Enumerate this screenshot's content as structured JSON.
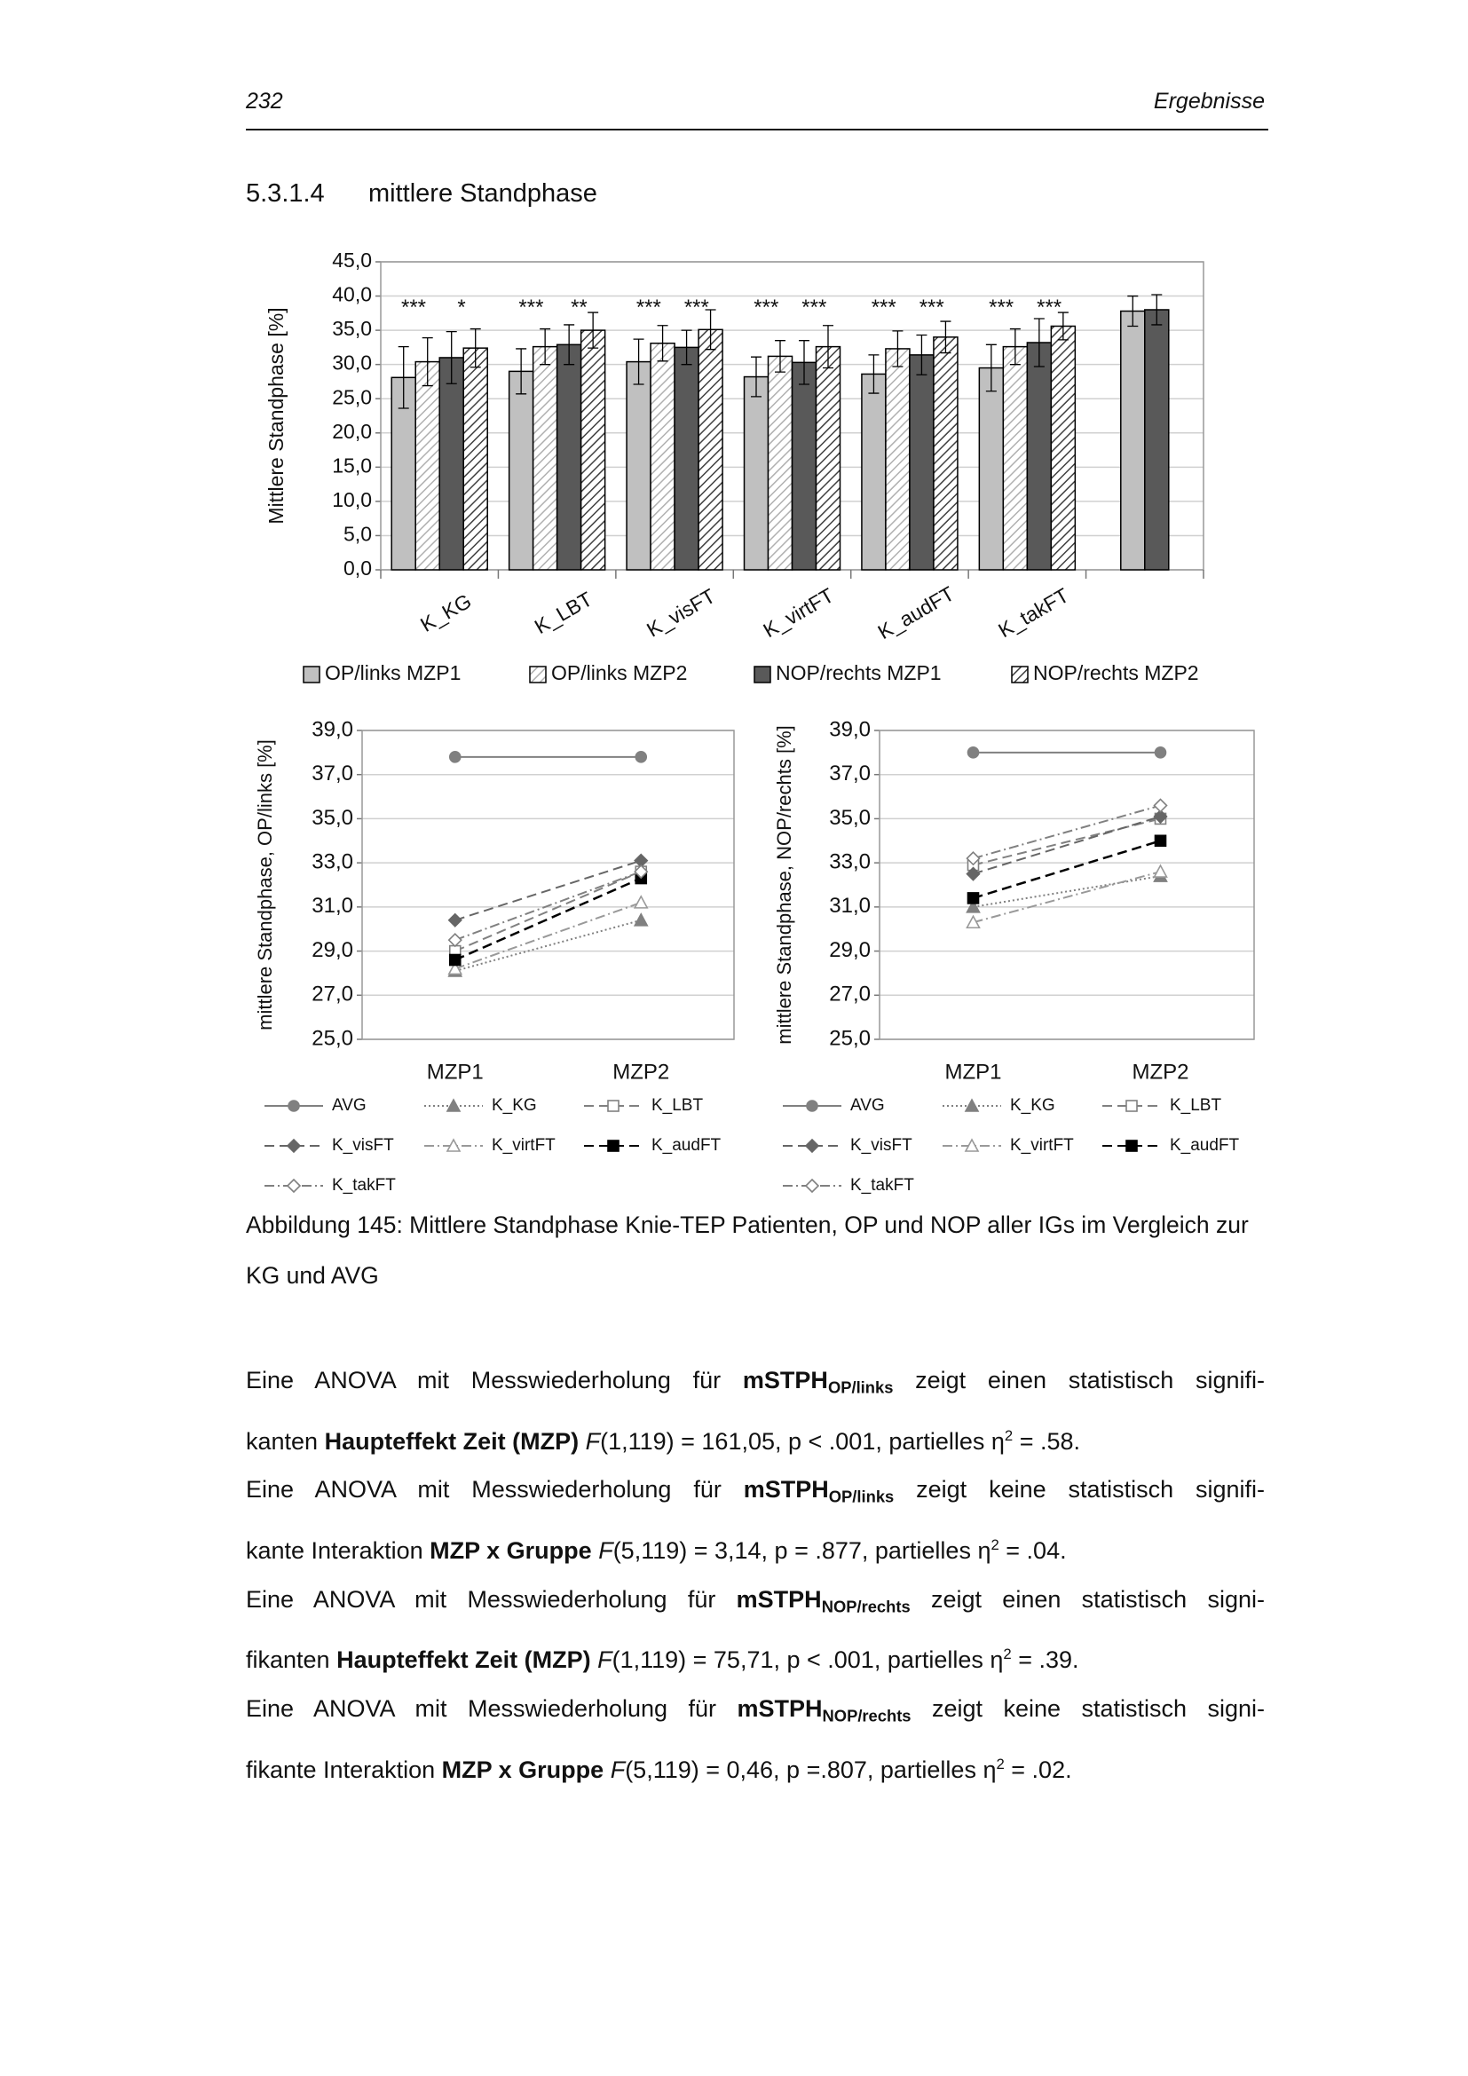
{
  "header": {
    "page_number": "232",
    "chapter": "Ergebnisse"
  },
  "section": {
    "number": "5.3.1.4",
    "title": "mittlere Standphase"
  },
  "chart_data": [
    {
      "type": "bar",
      "ylabel": "Mittlere Standphase [%]",
      "categories": [
        "K_KG",
        "K_LBT",
        "K_visFT",
        "K_virtFT",
        "K_audFT",
        "K_takFT",
        null
      ],
      "series": [
        {
          "name": "OP/links MZP1",
          "color": "#c0c0c0",
          "hatch": false,
          "values": [
            28.1,
            29.0,
            30.4,
            28.2,
            28.6,
            29.5,
            37.8
          ],
          "errors": [
            4.5,
            3.3,
            3.3,
            2.9,
            2.8,
            3.4,
            2.2
          ]
        },
        {
          "name": "OP/links MZP2",
          "color": "#b0b0b0",
          "hatch": true,
          "values": [
            30.4,
            32.6,
            33.1,
            31.2,
            32.3,
            32.6,
            null
          ],
          "errors": [
            3.5,
            2.6,
            2.6,
            2.3,
            2.6,
            2.6,
            null
          ]
        },
        {
          "name": "NOP/rechts MZP1",
          "color": "#595959",
          "hatch": false,
          "values": [
            31.0,
            32.9,
            32.5,
            30.3,
            31.4,
            33.2,
            38.0
          ],
          "errors": [
            3.8,
            2.9,
            2.5,
            3.2,
            2.9,
            3.5,
            2.2
          ]
        },
        {
          "name": "NOP/rechts MZP2",
          "color": "#404040",
          "hatch": true,
          "values": [
            32.4,
            35.0,
            35.1,
            32.6,
            34.0,
            35.6,
            null
          ],
          "errors": [
            2.8,
            2.6,
            2.9,
            3.1,
            2.3,
            2.0,
            null
          ]
        }
      ],
      "annotations": [
        [
          "***",
          "*"
        ],
        [
          "***",
          "**"
        ],
        [
          "***",
          "***"
        ],
        [
          "***",
          "***"
        ],
        [
          "***",
          "***"
        ],
        [
          "***",
          "***"
        ]
      ],
      "ylim": [
        0,
        45
      ],
      "yticks": [
        {
          "value": 0,
          "label": "0,0"
        },
        {
          "value": 5,
          "label": "5,0"
        },
        {
          "value": 10,
          "label": "10,0"
        },
        {
          "value": 15,
          "label": "15,0"
        },
        {
          "value": 20,
          "label": "20,0"
        },
        {
          "value": 25,
          "label": "25,0"
        },
        {
          "value": 30,
          "label": "30,0"
        },
        {
          "value": 35,
          "label": "35,0"
        },
        {
          "value": 40,
          "label": "40,0"
        },
        {
          "value": 45,
          "label": "45,0"
        }
      ],
      "grid": true
    },
    {
      "type": "line",
      "ylabel": "mittlere Standphase, OP/links [%]",
      "categories": [
        "MZP1",
        "MZP2"
      ],
      "series": [
        {
          "name": "AVG",
          "color": "#808080",
          "dash": "solid",
          "marker": "circle",
          "values": [
            37.8,
            37.8
          ]
        },
        {
          "name": "K_KG",
          "color": "#808080",
          "dash": "dotted",
          "marker": "triangle",
          "values": [
            28.1,
            30.4
          ]
        },
        {
          "name": "K_LBT",
          "color": "#808080",
          "dash": "dashed",
          "marker": "square-open",
          "values": [
            29.0,
            32.6
          ]
        },
        {
          "name": "K_visFT",
          "color": "#666666",
          "dash": "dashed",
          "marker": "diamond",
          "values": [
            30.4,
            33.1
          ]
        },
        {
          "name": "K_virtFT",
          "color": "#999999",
          "dash": "dashdot",
          "marker": "triangle-open",
          "values": [
            28.2,
            31.2
          ]
        },
        {
          "name": "K_audFT",
          "color": "#000000",
          "dash": "dashed",
          "marker": "square",
          "values": [
            28.6,
            32.3
          ]
        },
        {
          "name": "K_takFT",
          "color": "#808080",
          "dash": "dashdot",
          "marker": "diamond-open",
          "values": [
            29.5,
            32.6
          ]
        }
      ],
      "ylim": [
        25,
        39
      ],
      "yticks": [
        {
          "value": 25,
          "label": "25,0"
        },
        {
          "value": 27,
          "label": "27,0"
        },
        {
          "value": 29,
          "label": "29,0"
        },
        {
          "value": 31,
          "label": "31,0"
        },
        {
          "value": 33,
          "label": "33,0"
        },
        {
          "value": 35,
          "label": "35,0"
        },
        {
          "value": 37,
          "label": "37,0"
        },
        {
          "value": 39,
          "label": "39,0"
        }
      ],
      "grid": true
    },
    {
      "type": "line",
      "ylabel": "mittlere Standphase, NOP/rechts [%]",
      "categories": [
        "MZP1",
        "MZP2"
      ],
      "series": [
        {
          "name": "AVG",
          "color": "#808080",
          "dash": "solid",
          "marker": "circle",
          "values": [
            38.0,
            38.0
          ]
        },
        {
          "name": "K_KG",
          "color": "#808080",
          "dash": "dotted",
          "marker": "triangle",
          "values": [
            31.0,
            32.4
          ]
        },
        {
          "name": "K_LBT",
          "color": "#808080",
          "dash": "dashed",
          "marker": "square-open",
          "values": [
            32.9,
            35.0
          ]
        },
        {
          "name": "K_visFT",
          "color": "#666666",
          "dash": "dashed",
          "marker": "diamond",
          "values": [
            32.5,
            35.1
          ]
        },
        {
          "name": "K_virtFT",
          "color": "#999999",
          "dash": "dashdot",
          "marker": "triangle-open",
          "values": [
            30.3,
            32.6
          ]
        },
        {
          "name": "K_audFT",
          "color": "#000000",
          "dash": "dashed",
          "marker": "square",
          "values": [
            31.4,
            34.0
          ]
        },
        {
          "name": "K_takFT",
          "color": "#808080",
          "dash": "dashdot",
          "marker": "diamond-open",
          "values": [
            33.2,
            35.6
          ]
        }
      ],
      "ylim": [
        25,
        39
      ],
      "yticks": [
        {
          "value": 25,
          "label": "25,0"
        },
        {
          "value": 27,
          "label": "27,0"
        },
        {
          "value": 29,
          "label": "29,0"
        },
        {
          "value": 31,
          "label": "31,0"
        },
        {
          "value": 33,
          "label": "33,0"
        },
        {
          "value": 35,
          "label": "35,0"
        },
        {
          "value": 37,
          "label": "37,0"
        },
        {
          "value": 39,
          "label": "39,0"
        }
      ],
      "grid": true
    }
  ],
  "caption": "Abbildung 145: Mittlere Standphase Knie-TEP Patienten, OP und NOP aller IGs im Vergleich zur KG und AVG",
  "paragraphs": [
    [
      [
        {
          "text": "Eine ANOVA mit Messwiederholung für "
        },
        {
          "text": "mSTPH",
          "bold": true
        },
        {
          "text": "OP/links",
          "bold": true,
          "sub": true
        },
        {
          "text": " zeigt einen statistisch signifi-"
        }
      ],
      [
        {
          "text": "kanten "
        },
        {
          "text": "Haupteffekt Zeit (MZP)",
          "bold": true
        },
        {
          "text": " "
        },
        {
          "text": "F",
          "italic": true
        },
        {
          "text": "(1,119) = 161,05, p < .001, partielles η"
        },
        {
          "text": "2",
          "sup": true
        },
        {
          "text": " = .58."
        }
      ]
    ],
    [
      [
        {
          "text": "Eine ANOVA mit Messwiederholung für "
        },
        {
          "text": "mSTPH",
          "bold": true
        },
        {
          "text": "OP/links",
          "bold": true,
          "sub": true
        },
        {
          "text": " zeigt keine statistisch signifi-"
        }
      ],
      [
        {
          "text": "kante Interaktion "
        },
        {
          "text": "MZP x Gruppe",
          "bold": true
        },
        {
          "text": " "
        },
        {
          "text": "F",
          "italic": true
        },
        {
          "text": "(5,119) = 3,14, p = .877, partielles η"
        },
        {
          "text": "2",
          "sup": true
        },
        {
          "text": " = .04."
        }
      ]
    ],
    [
      [
        {
          "text": "Eine ANOVA mit Messwiederholung für "
        },
        {
          "text": "mSTPH",
          "bold": true
        },
        {
          "text": "NOP/rechts",
          "bold": true,
          "sub": true
        },
        {
          "text": " zeigt einen statistisch signi-"
        }
      ],
      [
        {
          "text": "fikanten "
        },
        {
          "text": "Haupteffekt Zeit (MZP)",
          "bold": true
        },
        {
          "text": " "
        },
        {
          "text": "F",
          "italic": true
        },
        {
          "text": "(1,119) = 75,71, p < .001, partielles η"
        },
        {
          "text": "2",
          "sup": true
        },
        {
          "text": " = .39."
        }
      ]
    ],
    [
      [
        {
          "text": "Eine ANOVA mit Messwiederholung für "
        },
        {
          "text": "mSTPH",
          "bold": true
        },
        {
          "text": "NOP/rechts",
          "bold": true,
          "sub": true
        },
        {
          "text": " zeigt keine statistisch signi-"
        }
      ],
      [
        {
          "text": "fikante Interaktion "
        },
        {
          "text": "MZP x Gruppe",
          "bold": true
        },
        {
          "text": " "
        },
        {
          "text": "F",
          "italic": true
        },
        {
          "text": "(5,119) = 0,46, p =.807, partielles η"
        },
        {
          "text": "2",
          "sup": true
        },
        {
          "text": " = .02."
        }
      ]
    ]
  ]
}
